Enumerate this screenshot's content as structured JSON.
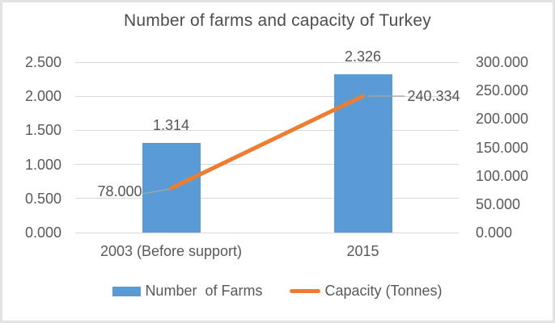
{
  "title": "Number of farms and capacity of Turkey",
  "chart_data": {
    "type": "combo",
    "categories": [
      "2003 (Before support)",
      "2015"
    ],
    "series": [
      {
        "name": "Number  of Farms",
        "type": "bar",
        "axis": "left",
        "values": [
          1314,
          2326
        ],
        "value_labels": [
          "1.314",
          "2.326"
        ],
        "color": "#5B9BD5"
      },
      {
        "name": "Capacity (Tonnes)",
        "type": "line",
        "axis": "right",
        "values": [
          78000,
          240334
        ],
        "value_labels": [
          "78.000",
          "240.334"
        ],
        "color": "#ED7D31"
      }
    ],
    "left_axis": {
      "min": 0,
      "max": 2500,
      "tick_labels": [
        "0.000",
        "0.500",
        "1.000",
        "1.500",
        "2.000",
        "2.500"
      ]
    },
    "right_axis": {
      "min": 0,
      "max": 300000,
      "tick_labels": [
        "0.000",
        "50.000",
        "100.000",
        "150.000",
        "200.000",
        "250.000",
        "300.000"
      ]
    },
    "grid": true,
    "legend_position": "bottom"
  },
  "colors": {
    "bar_series": "#5B9BD5",
    "line_series": "#ED7D31",
    "gridline": "#D9D9D9",
    "axis_text": "#595959",
    "title_text": "#4E4E4E",
    "leader_line": "#A6A6A6",
    "frame": "#E3E3E3"
  }
}
